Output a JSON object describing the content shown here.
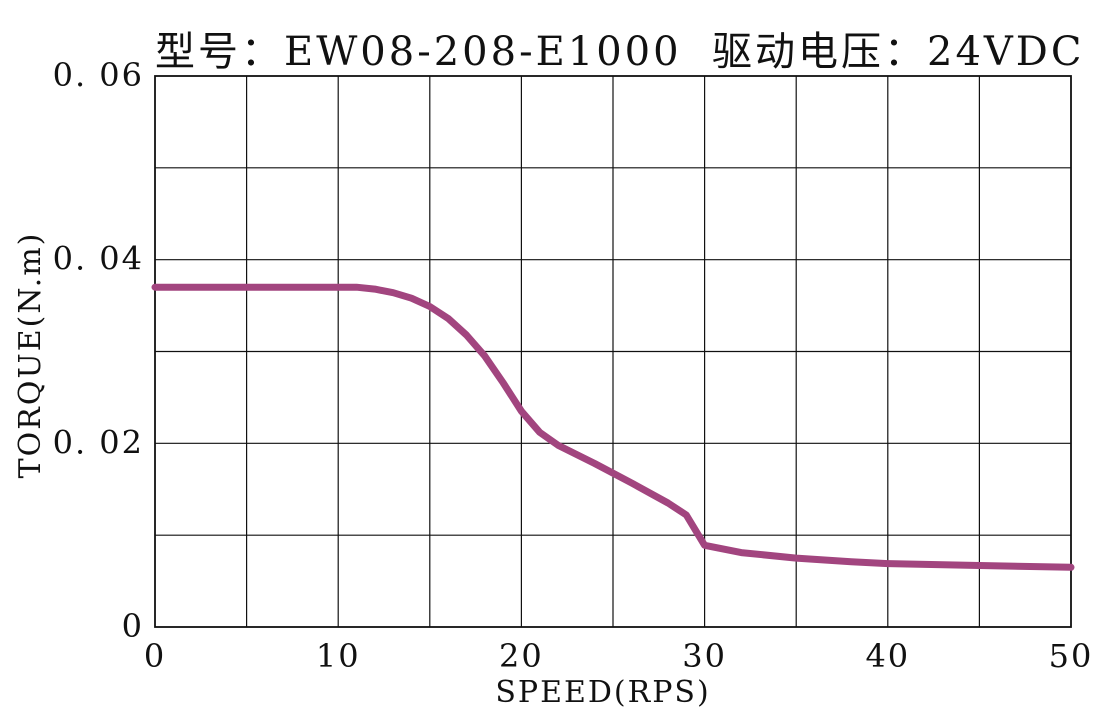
{
  "chart_data": {
    "type": "line",
    "title_model": "型号：EW08-208-E1000",
    "title_voltage": "驱动电压：24VDC",
    "xlabel": "SPEED(RPS)",
    "ylabel": "TORQUE(N.m)",
    "xlim": [
      0,
      50
    ],
    "ylim": [
      0,
      0.06
    ],
    "grid": true,
    "x_tick_labels": [
      "0",
      "10",
      "20",
      "30",
      "40",
      "50"
    ],
    "y_tick_labels": [
      "0",
      "0.02",
      "0.04",
      "0.06"
    ],
    "series_color": "#a2457f",
    "series": [
      {
        "x": [
          0,
          5,
          10,
          11,
          12,
          13,
          14,
          15,
          16,
          17,
          18,
          19,
          20,
          21,
          22,
          24,
          26,
          28,
          29,
          30,
          32,
          35,
          38,
          40,
          45,
          50
        ],
        "values": [
          0.037,
          0.037,
          0.037,
          0.037,
          0.0368,
          0.0364,
          0.0358,
          0.0349,
          0.0336,
          0.0318,
          0.0295,
          0.0266,
          0.0235,
          0.0212,
          0.0198,
          0.0178,
          0.0157,
          0.0135,
          0.0122,
          0.0089,
          0.0081,
          0.0075,
          0.0071,
          0.0069,
          0.0067,
          0.0065
        ]
      }
    ]
  }
}
